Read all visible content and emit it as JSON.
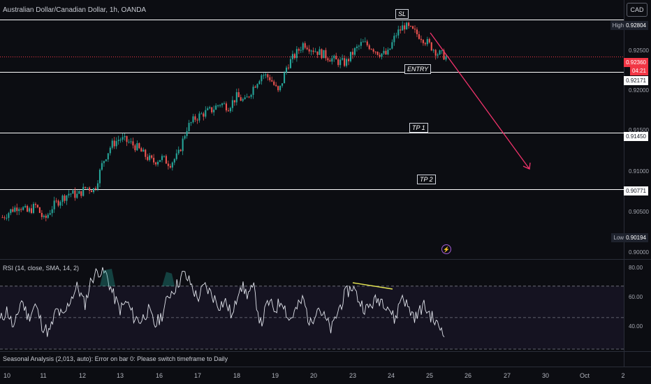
{
  "header": {
    "symbol_title": "Australian Dollar/Canadian Dollar, 1h, OANDA",
    "currency_button": "CAD"
  },
  "price_axis": {
    "ticks": [
      "0.92500",
      "0.92000",
      "0.91500",
      "0.91000",
      "0.90500",
      "0.90000"
    ],
    "high_label": "High",
    "high_value": "0.92804",
    "low_label": "Low",
    "low_value": "0.90194",
    "current_price": "0.92360",
    "countdown": "04:21",
    "level_entry": "0.92171",
    "level_tp1": "0.91450",
    "level_tp2": "0.90771"
  },
  "annotations": {
    "sl": "SL",
    "entry": "ENTRY",
    "tp1": "TP 1",
    "tp2": "TP 2"
  },
  "indicators": {
    "rsi_title": "RSI (14, close, SMA, 14, 2)",
    "rsi_ticks": [
      "80.00",
      "60.00",
      "40.00"
    ],
    "seasonal_message": "Seasonal Analysis (2,013, auto): Error on bar 0: Please switch timeframe to Daily"
  },
  "time_axis": [
    "10",
    "11",
    "12",
    "13",
    "16",
    "17",
    "18",
    "19",
    "20",
    "23",
    "24",
    "25",
    "26",
    "27",
    "30",
    "Oct",
    "2"
  ],
  "colors": {
    "up_candle": "#26a69a",
    "down_candle": "#ef5350",
    "projection_arrow": "#f0336b",
    "rsi_line": "#e0e3eb",
    "divergence_line": "#e8e854",
    "rsi_band": "#7e57c2"
  },
  "chart_data": {
    "type": "candlestick",
    "title": "Australian Dollar/Canadian Dollar, 1h, OANDA",
    "ylim": [
      0.8995,
      0.9295
    ],
    "y_ticks": [
      0.925,
      0.92,
      0.915,
      0.91,
      0.905,
      0.9
    ],
    "x_tick_labels": [
      "10",
      "11",
      "12",
      "13",
      "16",
      "17",
      "18",
      "19",
      "20",
      "23",
      "24",
      "25",
      "26",
      "27",
      "30",
      "Oct",
      "2"
    ],
    "price_waypoints": [
      0.9044,
      0.9052,
      0.9058,
      0.905,
      0.9058,
      0.904,
      0.9057,
      0.9066,
      0.9073,
      0.907,
      0.908,
      0.9077,
      0.911,
      0.913,
      0.9138,
      0.9134,
      0.9128,
      0.9118,
      0.911,
      0.9115,
      0.9108,
      0.9118,
      0.915,
      0.9162,
      0.9168,
      0.9172,
      0.918,
      0.9176,
      0.9188,
      0.9182,
      0.92,
      0.9215,
      0.921,
      0.9192,
      0.9225,
      0.9238,
      0.9252,
      0.9245,
      0.924,
      0.9235,
      0.923,
      0.9228,
      0.9242,
      0.9252,
      0.9248,
      0.924,
      0.9238,
      0.9262,
      0.9273,
      0.9266,
      0.926,
      0.925,
      0.924,
      0.9236
    ],
    "horizontal_levels": [
      {
        "label": "SL",
        "value": 0.92804
      },
      {
        "label": "ENTRY",
        "value": 0.92171
      },
      {
        "label": "TP 1",
        "value": 0.9145
      },
      {
        "label": "TP 2",
        "value": 0.90771
      }
    ],
    "current_price": 0.9236,
    "high": 0.92804,
    "low": 0.90194,
    "rsi": {
      "ylim": [
        30,
        85
      ],
      "levels": [
        70,
        50,
        30
      ],
      "y_ticks": [
        80,
        60,
        40
      ],
      "waypoints": [
        48,
        55,
        42,
        62,
        50,
        58,
        45,
        40,
        55,
        50,
        62,
        70,
        58,
        75,
        80,
        78,
        65,
        55,
        60,
        50,
        48,
        55,
        45,
        52,
        65,
        70,
        78,
        72,
        62,
        70,
        65,
        58,
        60,
        50,
        72,
        65,
        68,
        45,
        60,
        55,
        62,
        48,
        55,
        62,
        45,
        58,
        50,
        42,
        55,
        65,
        70,
        60,
        55,
        60,
        62,
        58,
        48,
        65,
        55,
        50,
        58,
        52,
        45,
        42
      ]
    }
  }
}
